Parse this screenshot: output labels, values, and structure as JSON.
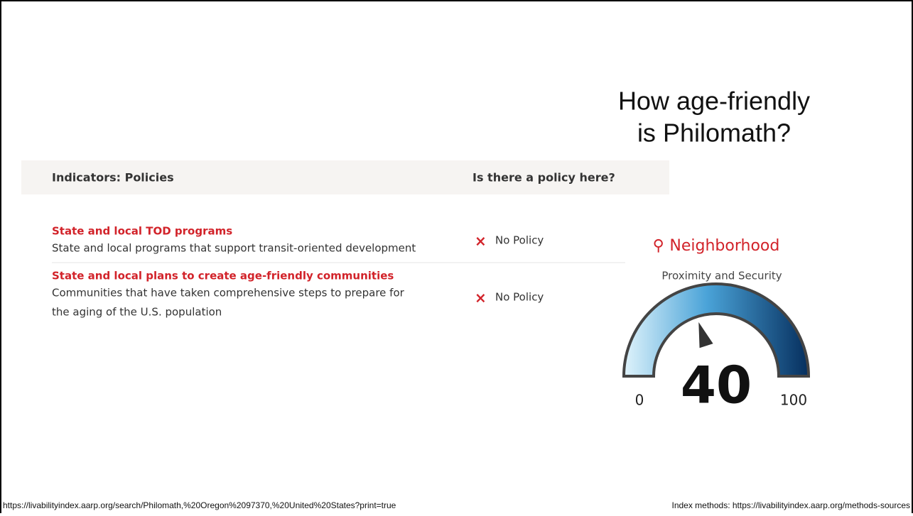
{
  "title": [
    "How age-friendly",
    "is Philomath?"
  ],
  "table": {
    "headers": [
      "Indicators: Policies",
      "Is there a policy here?"
    ],
    "rows": [
      {
        "name": "State and local TOD programs",
        "description": [
          "State and local programs that support transit-oriented development"
        ],
        "status": "No Policy"
      },
      {
        "name": "State and local plans to create age-friendly communities",
        "description": [
          "Communities that have taken comprehensive steps to prepare for",
          "the aging of the U.S. population"
        ],
        "status": "No Policy"
      }
    ]
  },
  "gauge": {
    "title": "Neighborhood",
    "subtitle": "Proximity and Security",
    "value": 40,
    "min": 0,
    "max": 100
  },
  "footer": {
    "left": "https://livabilityindex.aarp.org/search/Philomath,%20Oregon%2097370,%20United%20States?print=true",
    "right": "Index methods: https://livabilityindex.aarp.org/methods-sources"
  }
}
